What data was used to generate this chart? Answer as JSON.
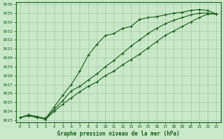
{
  "title": "Graphe pression niveau de la mer (hPa)",
  "bg_color": "#c8e8c8",
  "grid_color": "#a8c8a8",
  "line_color": "#1a5c1a",
  "border_color": "#1a5c1a",
  "xlim": [
    -0.5,
    23.5
  ],
  "ylim": [
    1022.8,
    1036.2
  ],
  "yticks": [
    1023,
    1024,
    1025,
    1026,
    1027,
    1028,
    1029,
    1030,
    1031,
    1032,
    1033,
    1034,
    1035,
    1036
  ],
  "xticks": [
    0,
    1,
    2,
    3,
    4,
    5,
    6,
    7,
    8,
    9,
    10,
    11,
    12,
    13,
    14,
    15,
    16,
    17,
    18,
    19,
    20,
    21,
    22,
    23
  ],
  "line1_x": [
    0,
    1,
    2,
    3,
    4,
    5,
    6,
    7,
    8,
    9,
    10,
    11,
    12,
    13,
    14,
    15,
    16,
    17,
    18,
    19,
    20,
    21,
    22,
    23
  ],
  "line1_y": [
    1023.3,
    1023.6,
    1023.4,
    1023.2,
    1024.5,
    1025.8,
    1027.0,
    1028.5,
    1030.3,
    1031.5,
    1032.5,
    1032.7,
    1033.3,
    1033.5,
    1034.3,
    1034.5,
    1034.6,
    1034.8,
    1035.0,
    1035.1,
    1035.3,
    1035.4,
    1035.3,
    1034.9
  ],
  "line2_x": [
    0,
    1,
    2,
    3,
    4,
    5,
    6,
    7,
    8,
    9,
    10,
    11,
    12,
    13,
    14,
    15,
    16,
    17,
    18,
    19,
    20,
    21,
    22,
    23
  ],
  "line2_y": [
    1023.3,
    1023.6,
    1023.4,
    1023.2,
    1024.2,
    1025.2,
    1026.3,
    1026.8,
    1027.5,
    1028.2,
    1029.0,
    1029.7,
    1030.5,
    1031.3,
    1032.0,
    1032.7,
    1033.3,
    1033.8,
    1034.2,
    1034.5,
    1034.8,
    1035.0,
    1035.0,
    1034.9
  ],
  "line3_x": [
    0,
    1,
    2,
    3,
    4,
    5,
    6,
    7,
    8,
    9,
    10,
    11,
    12,
    13,
    14,
    15,
    16,
    17,
    18,
    19,
    20,
    21,
    22,
    23
  ],
  "line3_y": [
    1023.3,
    1023.5,
    1023.3,
    1023.1,
    1024.0,
    1024.8,
    1025.5,
    1026.2,
    1026.8,
    1027.3,
    1028.0,
    1028.5,
    1029.2,
    1029.8,
    1030.4,
    1031.1,
    1031.8,
    1032.5,
    1033.0,
    1033.5,
    1034.0,
    1034.5,
    1034.9,
    1034.9
  ]
}
